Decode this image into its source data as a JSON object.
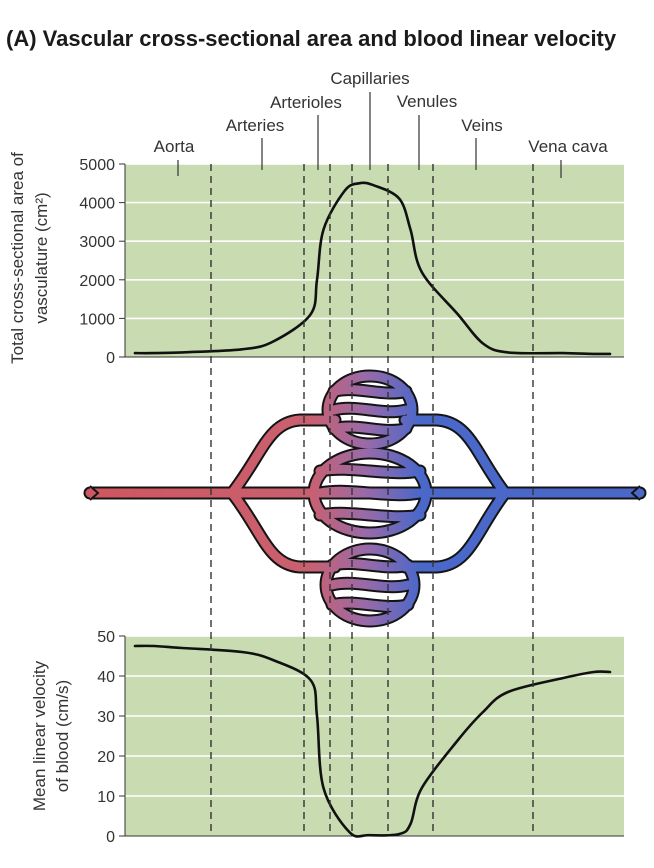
{
  "figure_title": "(A) Vascular cross-sectional area and blood linear velocity",
  "colors": {
    "plot_background": "#c9dbb0",
    "curve": "#111111",
    "arterial_red": "#d0565f",
    "venous_blue": "#4a68c9",
    "divider_lines": "#333333"
  },
  "vessel_segments": [
    "Aorta",
    "Arteries",
    "Arterioles",
    "Capillaries",
    "Venules",
    "Veins",
    "Vena cava"
  ],
  "chart_data": [
    {
      "type": "line",
      "title": "",
      "xlabel": "",
      "ylabel": "Total cross-sectional area of vasculature (cm²)",
      "ylim": [
        0,
        5000
      ],
      "yticks": [
        0,
        1000,
        2000,
        3000,
        4000,
        5000
      ],
      "grid": "horizontal",
      "series": [
        {
          "x": [
            "Aorta",
            "Aorta",
            "Arteries",
            "Arteries",
            "Arterioles",
            "Arterioles",
            "Arterioles",
            "Capillaries",
            "Capillaries",
            "Capillaries",
            "Venules",
            "Venules",
            "Venules",
            "Veins",
            "Veins",
            "Veins",
            "Vena cava",
            "Vena cava"
          ],
          "y": [
            100,
            120,
            200,
            400,
            1100,
            2000,
            3300,
            4300,
            4500,
            4450,
            4100,
            3300,
            2200,
            1100,
            350,
            120,
            100,
            80
          ]
        }
      ]
    },
    {
      "type": "line",
      "title": "",
      "xlabel": "",
      "ylabel": "Mean linear velocity of blood (cm/s)",
      "ylim": [
        0,
        50
      ],
      "yticks": [
        0,
        10,
        20,
        30,
        40,
        50
      ],
      "grid": "horizontal",
      "series": [
        {
          "x": [
            "Aorta",
            "Aorta",
            "Arteries",
            "Arteries",
            "Arterioles",
            "Arterioles",
            "Arterioles",
            "Capillaries",
            "Capillaries",
            "Venules",
            "Venules",
            "Venules",
            "Veins",
            "Veins",
            "Veins",
            "Vena cava",
            "Vena cava"
          ],
          "y": [
            47.5,
            47,
            46,
            44,
            39,
            30,
            12,
            1,
            0.2,
            0.5,
            3,
            12,
            24,
            31,
            36,
            39.5,
            41
          ]
        }
      ]
    }
  ]
}
